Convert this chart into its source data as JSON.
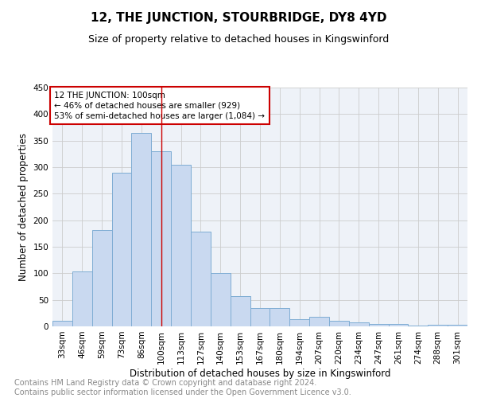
{
  "title": "12, THE JUNCTION, STOURBRIDGE, DY8 4YD",
  "subtitle": "Size of property relative to detached houses in Kingswinford",
  "xlabel": "Distribution of detached houses by size in Kingswinford",
  "ylabel": "Number of detached properties",
  "footer": "Contains HM Land Registry data © Crown copyright and database right 2024.\nContains public sector information licensed under the Open Government Licence v3.0.",
  "categories": [
    "33sqm",
    "46sqm",
    "59sqm",
    "73sqm",
    "86sqm",
    "100sqm",
    "113sqm",
    "127sqm",
    "140sqm",
    "153sqm",
    "167sqm",
    "180sqm",
    "194sqm",
    "207sqm",
    "220sqm",
    "234sqm",
    "247sqm",
    "261sqm",
    "274sqm",
    "288sqm",
    "301sqm"
  ],
  "values": [
    10,
    104,
    181,
    290,
    365,
    330,
    305,
    178,
    100,
    57,
    35,
    35,
    13,
    18,
    11,
    7,
    5,
    5,
    2,
    3,
    3
  ],
  "bar_color": "#c9d9f0",
  "bar_edge_color": "#7fadd4",
  "highlight_bar_index": 5,
  "highlight_line_color": "#cc0000",
  "annotation_text": "12 THE JUNCTION: 100sqm\n← 46% of detached houses are smaller (929)\n53% of semi-detached houses are larger (1,084) →",
  "annotation_box_color": "#cc0000",
  "ylim": [
    0,
    450
  ],
  "yticks": [
    0,
    50,
    100,
    150,
    200,
    250,
    300,
    350,
    400,
    450
  ],
  "grid_color": "#cccccc",
  "background_color": "#eef2f8",
  "title_fontsize": 11,
  "subtitle_fontsize": 9,
  "axis_label_fontsize": 8.5,
  "tick_fontsize": 7.5,
  "footer_fontsize": 7
}
